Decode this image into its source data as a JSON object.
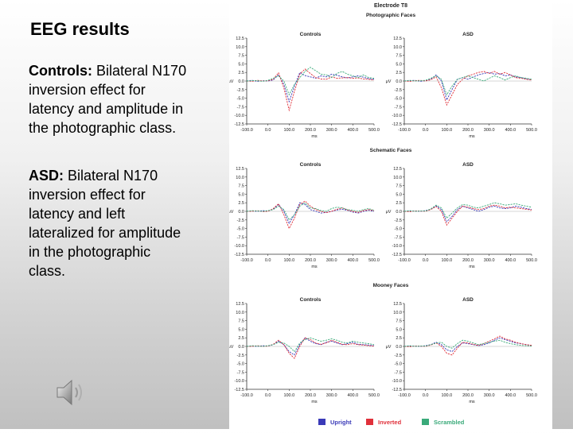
{
  "slide": {
    "title": "EEG results",
    "controls_label": "Controls:",
    "controls_text": "Bilateral N170 inversion effect for latency and amplitude in the photographic class.",
    "asd_label": "ASD:",
    "asd_text": "Bilateral N170 inversion effect for latency and left lateralized for amplitude in the photographic class."
  },
  "icons": {
    "speaker": "speaker-icon"
  },
  "chart_data": {
    "type": "line",
    "title": "Electrode T8",
    "xlabel": "ms",
    "ylabel": "μV",
    "xlim": [
      -100,
      500
    ],
    "ylim": [
      12.5,
      -12.5
    ],
    "inverted_y": true,
    "x_ticks": [
      "-100.0",
      "0.0",
      "100.0",
      "200.0",
      "300.0",
      "400.0",
      "500.0"
    ],
    "y_ticks": [
      "12.5",
      "10.0",
      "7.5",
      "5.0",
      "2.5",
      "0.0",
      "-2.5",
      "-5.0",
      "-7.5",
      "-10.0",
      "-12.5"
    ],
    "legend": {
      "placement": "bottom",
      "entries": [
        {
          "name": "Upright",
          "color": "#3a3ab8"
        },
        {
          "name": "Inverted",
          "color": "#e0303a"
        },
        {
          "name": "Scrambled",
          "color": "#3aaa7a"
        }
      ]
    },
    "x": [
      -100,
      -75,
      -50,
      -25,
      0,
      25,
      50,
      75,
      100,
      125,
      150,
      175,
      200,
      225,
      250,
      275,
      300,
      325,
      350,
      375,
      400,
      425,
      450,
      475,
      500
    ],
    "rows": [
      {
        "title": "Photographic Faces",
        "panels": [
          {
            "title": "Controls",
            "series": [
              {
                "name": "Upright",
                "values": [
                  0,
                  0.2,
                  -0.1,
                  0.1,
                  0,
                  0.3,
                  1.8,
                  -1.0,
                  -6.0,
                  -1.5,
                  2.5,
                  1.6,
                  1.2,
                  0.8,
                  1.5,
                  1.2,
                  2.0,
                  1.7,
                  1.2,
                  0.9,
                  1.2,
                  1.5,
                  1.1,
                  0.7,
                  0.5
                ]
              },
              {
                "name": "Inverted",
                "values": [
                  0,
                  -0.1,
                  0.2,
                  0,
                  0.1,
                  0.5,
                  2.4,
                  -2.0,
                  -8.5,
                  -3.0,
                  2.0,
                  3.5,
                  2.2,
                  1.0,
                  0.6,
                  0.5,
                  1.2,
                  0.8,
                  0.9,
                  1.0,
                  0.8,
                  0.9,
                  0.6,
                  0.5,
                  0.3
                ]
              },
              {
                "name": "Scrambled",
                "values": [
                  0,
                  0.1,
                  0.1,
                  -0.1,
                  0.2,
                  0.8,
                  1.5,
                  0.0,
                  -4.0,
                  -1.0,
                  1.0,
                  2.8,
                  4.0,
                  3.0,
                  2.0,
                  1.8,
                  1.0,
                  2.2,
                  2.8,
                  2.0,
                  1.5,
                  1.0,
                  1.8,
                  1.0,
                  0.8
                ]
              }
            ]
          },
          {
            "title": "ASD",
            "series": [
              {
                "name": "Upright",
                "values": [
                  0,
                  0.1,
                  0.2,
                  -0.1,
                  0.1,
                  0.5,
                  1.8,
                  0.0,
                  -5.5,
                  -2.5,
                  0.5,
                  1.0,
                  0.5,
                  1.2,
                  1.8,
                  2.2,
                  2.5,
                  2.0,
                  2.2,
                  1.5,
                  1.8,
                  1.2,
                  1.0,
                  0.6,
                  0.4
                ]
              },
              {
                "name": "Inverted",
                "values": [
                  0,
                  -0.1,
                  0.1,
                  0.2,
                  0,
                  0.4,
                  1.2,
                  -2.0,
                  -7.0,
                  -4.0,
                  -1.0,
                  0.5,
                  1.5,
                  2.0,
                  2.5,
                  2.8,
                  2.2,
                  2.8,
                  2.0,
                  2.5,
                  1.8,
                  1.0,
                  0.8,
                  0.5,
                  0.3
                ]
              },
              {
                "name": "Scrambled",
                "values": [
                  0,
                  0.2,
                  0,
                  0.1,
                  0.2,
                  0.8,
                  1.5,
                  0.5,
                  -4.0,
                  -1.5,
                  0.5,
                  1.0,
                  1.5,
                  1.0,
                  0.5,
                  0.0,
                  0.8,
                  1.5,
                  1.0,
                  0.3,
                  1.0,
                  1.5,
                  1.0,
                  0.8,
                  0.5
                ]
              }
            ]
          }
        ]
      },
      {
        "title": "Schematic Faces",
        "panels": [
          {
            "title": "Controls",
            "series": [
              {
                "name": "Upright",
                "values": [
                  0,
                  0.1,
                  0,
                  0.2,
                  0.1,
                  0.6,
                  2.0,
                  0.0,
                  -3.5,
                  -1.0,
                  2.5,
                  2.0,
                  0.5,
                  0.0,
                  -0.5,
                  -0.3,
                  0.0,
                  0.4,
                  0.6,
                  0.3,
                  -0.2,
                  -0.5,
                  0.0,
                  0.3,
                  0.0
                ]
              },
              {
                "name": "Inverted",
                "values": [
                  0,
                  0,
                  0.2,
                  -0.1,
                  0,
                  0.8,
                  2.2,
                  -1.0,
                  -5.0,
                  -2.0,
                  2.0,
                  3.0,
                  1.5,
                  0.5,
                  0.0,
                  -0.4,
                  0.0,
                  0.6,
                  1.0,
                  0.4,
                  0.0,
                  -0.3,
                  0.2,
                  0.5,
                  0.2
                ]
              },
              {
                "name": "Scrambled",
                "values": [
                  0,
                  0.2,
                  0.1,
                  0,
                  0.2,
                  0.5,
                  1.5,
                  0.5,
                  -2.5,
                  -1.0,
                  1.5,
                  2.5,
                  1.0,
                  0.8,
                  0.2,
                  0.0,
                  0.8,
                  1.2,
                  1.0,
                  0.5,
                  0.3,
                  0.0,
                  0.5,
                  0.8,
                  0.3
                ]
              }
            ]
          },
          {
            "title": "ASD",
            "series": [
              {
                "name": "Upright",
                "values": [
                  0,
                  0.1,
                  0.1,
                  0,
                  0.2,
                  0.6,
                  1.6,
                  0.5,
                  -3.0,
                  -1.5,
                  0.5,
                  1.5,
                  1.0,
                  0.5,
                  0.0,
                  0.5,
                  1.2,
                  1.5,
                  1.0,
                  0.8,
                  1.0,
                  1.5,
                  1.2,
                  0.8,
                  0.5
                ]
              },
              {
                "name": "Inverted",
                "values": [
                  0,
                  -0.1,
                  0.1,
                  0.1,
                  0,
                  0.5,
                  1.4,
                  0.0,
                  -4.0,
                  -2.0,
                  0.0,
                  1.5,
                  1.2,
                  0.8,
                  0.5,
                  0.8,
                  1.5,
                  1.8,
                  1.5,
                  1.0,
                  1.2,
                  1.0,
                  0.8,
                  0.6,
                  0.4
                ]
              },
              {
                "name": "Scrambled",
                "values": [
                  0,
                  0.2,
                  0,
                  0.1,
                  0.1,
                  0.7,
                  1.8,
                  1.0,
                  -2.0,
                  -0.5,
                  1.0,
                  2.0,
                  1.8,
                  1.2,
                  1.0,
                  1.5,
                  2.0,
                  2.5,
                  2.2,
                  1.8,
                  2.0,
                  2.2,
                  1.8,
                  1.5,
                  1.2
                ]
              }
            ]
          }
        ]
      },
      {
        "title": "Mooney Faces",
        "panels": [
          {
            "title": "Controls",
            "series": [
              {
                "name": "Upright",
                "values": [
                  0,
                  0.1,
                  0,
                  0.2,
                  0.1,
                  0.5,
                  1.5,
                  0.5,
                  -1.5,
                  -2.5,
                  0.5,
                  2.5,
                  1.5,
                  0.8,
                  0.5,
                  1.2,
                  1.5,
                  1.0,
                  0.5,
                  0.8,
                  1.2,
                  0.6,
                  0.5,
                  0.4,
                  0.2
                ]
              },
              {
                "name": "Inverted",
                "values": [
                  0,
                  0,
                  0.2,
                  0,
                  0.1,
                  0.6,
                  1.8,
                  0.5,
                  -2.0,
                  -3.5,
                  0.0,
                  2.5,
                  2.0,
                  1.0,
                  0.6,
                  1.0,
                  1.8,
                  1.2,
                  0.6,
                  0.5,
                  0.8,
                  0.5,
                  0.4,
                  0.2,
                  0.1
                ]
              },
              {
                "name": "Scrambled",
                "values": [
                  0,
                  0.2,
                  0.1,
                  0,
                  0.2,
                  0.5,
                  1.2,
                  1.0,
                  0.0,
                  -1.5,
                  1.0,
                  2.0,
                  2.5,
                  2.0,
                  1.5,
                  1.8,
                  2.2,
                  1.8,
                  1.2,
                  1.0,
                  1.5,
                  1.2,
                  1.0,
                  0.8,
                  0.5
                ]
              }
            ]
          },
          {
            "title": "ASD",
            "series": [
              {
                "name": "Upright",
                "values": [
                  0,
                  0.1,
                  0.1,
                  0,
                  0.2,
                  0.5,
                  1.2,
                  0.5,
                  -1.0,
                  -1.5,
                  0.0,
                  1.0,
                  0.8,
                  0.5,
                  0.2,
                  0.5,
                  1.0,
                  1.8,
                  2.5,
                  2.0,
                  1.5,
                  1.0,
                  0.8,
                  0.5,
                  0.3
                ]
              },
              {
                "name": "Inverted",
                "values": [
                  0,
                  -0.1,
                  0.1,
                  0.1,
                  0,
                  0.4,
                  1.0,
                  0.0,
                  -2.0,
                  -2.5,
                  -0.5,
                  1.2,
                  1.0,
                  0.6,
                  0.3,
                  0.8,
                  1.5,
                  2.2,
                  3.0,
                  2.2,
                  1.8,
                  1.2,
                  0.8,
                  0.5,
                  0.3
                ]
              },
              {
                "name": "Scrambled",
                "values": [
                  0,
                  0.2,
                  0,
                  0.1,
                  0.1,
                  0.5,
                  1.0,
                  1.2,
                  0.0,
                  -0.5,
                  0.8,
                  1.8,
                  1.5,
                  1.0,
                  0.5,
                  0.8,
                  1.2,
                  1.5,
                  1.8,
                  1.2,
                  0.8,
                  0.5,
                  0.3,
                  0.2,
                  0.1
                ]
              }
            ]
          }
        ]
      }
    ]
  }
}
